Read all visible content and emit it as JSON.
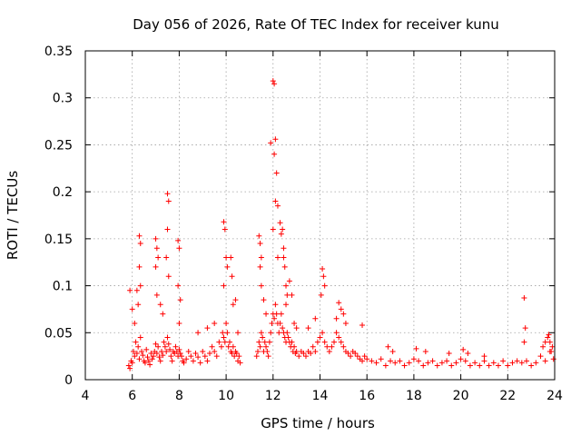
{
  "chart_data": {
    "type": "scatter",
    "title": "Day 056 of 2026, Rate Of TEC Index for receiver kunu",
    "xlabel": "GPS time / hours",
    "ylabel": "ROTI / TECUs",
    "xlim": [
      4,
      24
    ],
    "ylim": [
      0,
      0.35
    ],
    "x_ticks": [
      "4",
      "6",
      "8",
      "10",
      "12",
      "14",
      "16",
      "18",
      "20",
      "22",
      "24"
    ],
    "y_ticks": [
      "0",
      "0.05",
      "0.1",
      "0.15",
      "0.2",
      "0.25",
      "0.3",
      "0.35"
    ],
    "grid": true,
    "marker": "+",
    "color": "#ff0000",
    "series": [
      {
        "x": [
          5.85,
          5.9,
          5.95,
          6.0,
          6.05,
          6.1,
          6.15,
          6.2,
          6.25,
          6.3,
          6.35,
          6.4,
          6.45,
          6.5,
          6.55,
          6.6,
          6.65,
          6.7,
          6.75,
          6.8,
          6.85,
          6.9,
          6.95,
          7.0,
          7.05,
          7.1,
          7.15,
          7.2,
          7.25,
          7.3,
          7.35,
          7.4,
          7.45,
          7.5,
          7.55,
          7.6,
          7.65,
          7.7,
          7.75,
          7.8,
          7.85,
          7.9,
          7.95,
          8.0,
          8.05,
          8.1,
          8.15,
          8.2,
          8.3,
          8.4,
          8.5,
          8.6,
          8.7,
          8.8,
          8.9,
          9.0,
          9.1,
          9.2,
          9.3,
          9.4,
          9.5,
          9.6,
          9.7,
          9.8,
          9.85,
          9.9,
          9.95,
          10.0,
          10.05,
          10.1,
          10.15,
          10.2,
          10.25,
          10.3,
          10.35,
          10.4,
          10.45,
          10.5,
          10.55,
          10.6,
          6.3,
          6.35,
          6.3,
          6.35,
          6.2,
          6.25,
          7.0,
          7.05,
          7.0,
          7.1,
          7.05,
          7.5,
          7.55,
          7.5,
          7.45,
          7.55,
          7.95,
          8.0,
          7.95,
          8.05,
          8.0,
          9.9,
          9.95,
          10.0,
          9.9,
          10.05,
          10.2,
          10.25,
          10.3,
          5.9,
          6.0,
          6.1,
          7.2,
          7.3,
          8.8,
          9.2,
          9.5,
          10.4,
          10.5,
          11.3,
          11.35,
          11.4,
          11.45,
          11.5,
          11.55,
          11.6,
          11.65,
          11.7,
          11.75,
          11.8,
          11.85,
          11.9,
          11.95,
          12.0,
          12.05,
          12.1,
          12.15,
          12.2,
          12.25,
          12.3,
          12.35,
          12.4,
          12.45,
          12.5,
          12.55,
          12.6,
          12.65,
          12.7,
          12.75,
          12.8,
          12.85,
          12.9,
          12.95,
          13.0,
          13.1,
          13.2,
          13.3,
          13.4,
          13.5,
          13.6,
          13.7,
          13.8,
          13.9,
          14.0,
          14.1,
          14.2,
          14.3,
          14.4,
          14.5,
          14.6,
          14.7,
          14.8,
          14.9,
          15.0,
          15.1,
          15.2,
          15.3,
          15.4,
          15.5,
          15.6,
          15.7,
          15.8,
          15.9,
          16.0,
          11.4,
          11.45,
          11.5,
          11.45,
          11.5,
          11.9,
          12.0,
          12.05,
          12.1,
          12.05,
          12.15,
          12.1,
          12.2,
          12.0,
          12.2,
          12.3,
          12.4,
          12.35,
          12.45,
          12.5,
          12.55,
          12.6,
          12.55,
          12.45,
          12.7,
          12.8,
          14.1,
          14.15,
          14.2,
          14.05,
          13.8,
          14.8,
          14.9,
          15.0,
          14.7,
          15.1,
          13.5,
          11.6,
          11.7,
          12.9,
          13.0,
          15.8,
          16.2,
          16.4,
          16.6,
          16.8,
          17.0,
          17.2,
          17.4,
          17.6,
          17.8,
          18.0,
          18.2,
          18.4,
          18.6,
          18.8,
          19.0,
          19.2,
          19.4,
          19.6,
          19.8,
          20.0,
          20.2,
          20.4,
          20.6,
          20.8,
          21.0,
          21.2,
          21.4,
          21.6,
          21.8,
          22.0,
          22.2,
          22.4,
          22.6,
          22.8,
          23.0,
          23.2,
          23.4,
          23.6,
          23.8,
          23.95,
          16.9,
          17.1,
          18.1,
          18.5,
          19.5,
          20.1,
          20.3,
          21.0,
          22.7,
          22.75,
          22.7,
          23.5,
          23.6,
          23.7,
          23.8,
          23.9,
          23.75,
          23.85
        ],
        "y": [
          0.015,
          0.012,
          0.02,
          0.018,
          0.03,
          0.025,
          0.04,
          0.028,
          0.035,
          0.022,
          0.045,
          0.03,
          0.026,
          0.02,
          0.018,
          0.032,
          0.024,
          0.02,
          0.016,
          0.028,
          0.022,
          0.025,
          0.03,
          0.038,
          0.028,
          0.035,
          0.024,
          0.02,
          0.03,
          0.026,
          0.04,
          0.035,
          0.03,
          0.045,
          0.038,
          0.032,
          0.025,
          0.02,
          0.03,
          0.028,
          0.035,
          0.03,
          0.025,
          0.032,
          0.028,
          0.025,
          0.02,
          0.018,
          0.022,
          0.03,
          0.025,
          0.02,
          0.028,
          0.024,
          0.018,
          0.03,
          0.025,
          0.02,
          0.028,
          0.035,
          0.03,
          0.025,
          0.04,
          0.035,
          0.05,
          0.045,
          0.04,
          0.06,
          0.05,
          0.035,
          0.04,
          0.03,
          0.028,
          0.035,
          0.025,
          0.03,
          0.028,
          0.02,
          0.025,
          0.018,
          0.153,
          0.145,
          0.12,
          0.1,
          0.095,
          0.08,
          0.15,
          0.14,
          0.12,
          0.13,
          0.09,
          0.198,
          0.19,
          0.16,
          0.13,
          0.11,
          0.148,
          0.14,
          0.1,
          0.085,
          0.06,
          0.168,
          0.16,
          0.13,
          0.1,
          0.12,
          0.13,
          0.11,
          0.08,
          0.095,
          0.075,
          0.06,
          0.08,
          0.07,
          0.05,
          0.055,
          0.06,
          0.085,
          0.05,
          0.025,
          0.03,
          0.04,
          0.035,
          0.05,
          0.045,
          0.03,
          0.04,
          0.035,
          0.03,
          0.025,
          0.04,
          0.05,
          0.06,
          0.07,
          0.065,
          0.08,
          0.07,
          0.06,
          0.05,
          0.06,
          0.07,
          0.055,
          0.05,
          0.045,
          0.04,
          0.05,
          0.045,
          0.04,
          0.035,
          0.04,
          0.03,
          0.035,
          0.028,
          0.03,
          0.025,
          0.03,
          0.028,
          0.025,
          0.03,
          0.028,
          0.035,
          0.03,
          0.04,
          0.045,
          0.05,
          0.04,
          0.035,
          0.03,
          0.035,
          0.04,
          0.05,
          0.045,
          0.04,
          0.035,
          0.03,
          0.028,
          0.025,
          0.03,
          0.028,
          0.025,
          0.022,
          0.02,
          0.025,
          0.022,
          0.153,
          0.145,
          0.13,
          0.12,
          0.1,
          0.252,
          0.318,
          0.315,
          0.256,
          0.24,
          0.22,
          0.19,
          0.185,
          0.16,
          0.13,
          0.167,
          0.16,
          0.155,
          0.14,
          0.12,
          0.1,
          0.09,
          0.08,
          0.13,
          0.105,
          0.09,
          0.118,
          0.11,
          0.1,
          0.09,
          0.065,
          0.082,
          0.075,
          0.07,
          0.065,
          0.06,
          0.055,
          0.085,
          0.07,
          0.06,
          0.055,
          0.058,
          0.02,
          0.018,
          0.022,
          0.015,
          0.02,
          0.018,
          0.02,
          0.015,
          0.018,
          0.022,
          0.02,
          0.015,
          0.018,
          0.02,
          0.015,
          0.018,
          0.02,
          0.015,
          0.018,
          0.022,
          0.02,
          0.015,
          0.018,
          0.015,
          0.02,
          0.015,
          0.018,
          0.015,
          0.02,
          0.015,
          0.018,
          0.02,
          0.018,
          0.02,
          0.015,
          0.018,
          0.025,
          0.02,
          0.03,
          0.022,
          0.035,
          0.03,
          0.033,
          0.03,
          0.028,
          0.032,
          0.028,
          0.025,
          0.087,
          0.055,
          0.04,
          0.035,
          0.04,
          0.045,
          0.04,
          0.035,
          0.048,
          0.03
        ]
      }
    ]
  }
}
